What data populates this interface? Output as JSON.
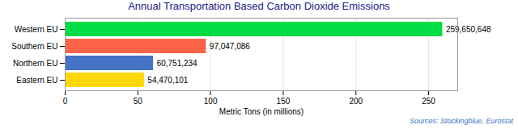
{
  "chart_data": {
    "type": "bar",
    "orientation": "horizontal",
    "title": "Annual Transportation Based Carbon Dioxide Emissions",
    "xlabel": "Metric Tons (in millions)",
    "annotations": [
      "Sources: Stockingblue, Eurostat"
    ],
    "categories": [
      "Western EU",
      "Southern EU",
      "Northern EU",
      "Eastern EU"
    ],
    "values": [
      259.650648,
      97.047086,
      60.751234,
      54.470101
    ],
    "value_labels": [
      "259,650,648",
      "97,047,086",
      "60,751,234",
      "54,470,101"
    ],
    "colors": [
      "#00DD44",
      "#FF6347",
      "#4472C4",
      "#FFD700"
    ],
    "xlim": [
      0,
      270
    ],
    "xticks": [
      0,
      50,
      100,
      150,
      200,
      250
    ],
    "grid": true,
    "data_labels": true
  }
}
